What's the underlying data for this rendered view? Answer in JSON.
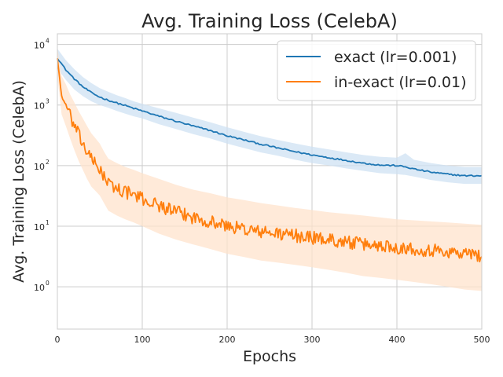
{
  "chart_data": {
    "type": "line",
    "title": "Avg. Training Loss (CelebA)",
    "xlabel": "Epochs",
    "ylabel": "Avg. Training Loss (CelebA)",
    "xlim": [
      0,
      500
    ],
    "ylim": [
      0.2,
      15000
    ],
    "yscale": "log",
    "grid": true,
    "x_ticks": [
      0,
      100,
      200,
      300,
      400,
      500
    ],
    "x_tick_labels": [
      "0",
      "100",
      "200",
      "300",
      "400",
      "500"
    ],
    "y_ticks": [
      {
        "value": 1,
        "base": "10",
        "exp": "0"
      },
      {
        "value": 10,
        "base": "10",
        "exp": "1"
      },
      {
        "value": 100,
        "base": "10",
        "exp": "2"
      },
      {
        "value": 1000,
        "base": "10",
        "exp": "3"
      },
      {
        "value": 10000,
        "base": "10",
        "exp": "4"
      }
    ],
    "legend_position": "top-right",
    "series": [
      {
        "name": "exact (lr=0.001)",
        "color": "#1f77b4",
        "band_color": "#cfe2f3",
        "x": [
          0,
          10,
          20,
          30,
          40,
          50,
          60,
          70,
          80,
          90,
          100,
          120,
          140,
          160,
          180,
          200,
          220,
          240,
          260,
          280,
          300,
          320,
          340,
          360,
          380,
          400,
          410,
          420,
          440,
          460,
          480,
          500
        ],
        "y": [
          6000,
          3800,
          2700,
          2000,
          1600,
          1350,
          1200,
          1080,
          980,
          880,
          800,
          650,
          540,
          450,
          380,
          310,
          265,
          225,
          195,
          170,
          150,
          135,
          122,
          110,
          102,
          100,
          95,
          88,
          78,
          72,
          68,
          68
        ],
        "lower": [
          4000,
          2600,
          1800,
          1400,
          1150,
          1000,
          900,
          800,
          720,
          650,
          600,
          480,
          400,
          330,
          280,
          230,
          195,
          165,
          145,
          125,
          110,
          100,
          90,
          82,
          75,
          72,
          70,
          66,
          58,
          53,
          50,
          50
        ],
        "upper": [
          8500,
          5500,
          3900,
          2900,
          2300,
          1900,
          1650,
          1450,
          1300,
          1150,
          1050,
          880,
          740,
          620,
          520,
          430,
          360,
          305,
          265,
          232,
          205,
          185,
          166,
          150,
          140,
          135,
          160,
          125,
          110,
          100,
          95,
          95
        ]
      },
      {
        "name": "in-exact (lr=0.01)",
        "color": "#ff7f0e",
        "band_color": "#ffe3cc",
        "x": [
          0,
          5,
          10,
          15,
          20,
          25,
          30,
          35,
          40,
          45,
          50,
          55,
          60,
          70,
          80,
          90,
          100,
          120,
          140,
          160,
          180,
          200,
          220,
          240,
          260,
          280,
          300,
          320,
          340,
          360,
          380,
          400,
          420,
          440,
          460,
          480,
          500
        ],
        "y": [
          6000,
          1400,
          1000,
          650,
          450,
          320,
          230,
          170,
          125,
          105,
          90,
          65,
          50,
          42,
          37,
          33,
          28,
          22,
          17,
          14,
          12,
          10,
          9,
          8,
          7.5,
          7,
          6.5,
          6,
          5.5,
          5,
          4.8,
          4.5,
          4.2,
          4,
          3.8,
          3.5,
          3.3
        ],
        "lower": [
          3000,
          700,
          450,
          280,
          180,
          120,
          85,
          60,
          45,
          38,
          32,
          24,
          18,
          15,
          13,
          11.5,
          10,
          7.5,
          6,
          5,
          4.2,
          3.5,
          3.1,
          2.7,
          2.5,
          2.3,
          2.1,
          1.9,
          1.7,
          1.5,
          1.4,
          1.3,
          1.2,
          1.1,
          1.0,
          0.9,
          0.85
        ],
        "upper": [
          9000,
          3000,
          2200,
          1500,
          1100,
          800,
          600,
          450,
          340,
          280,
          230,
          170,
          130,
          110,
          95,
          85,
          75,
          60,
          48,
          40,
          35,
          30,
          27,
          24,
          22,
          20,
          18.5,
          17,
          16,
          15,
          14,
          13,
          12.5,
          12,
          11.5,
          11,
          10.5
        ]
      }
    ]
  }
}
